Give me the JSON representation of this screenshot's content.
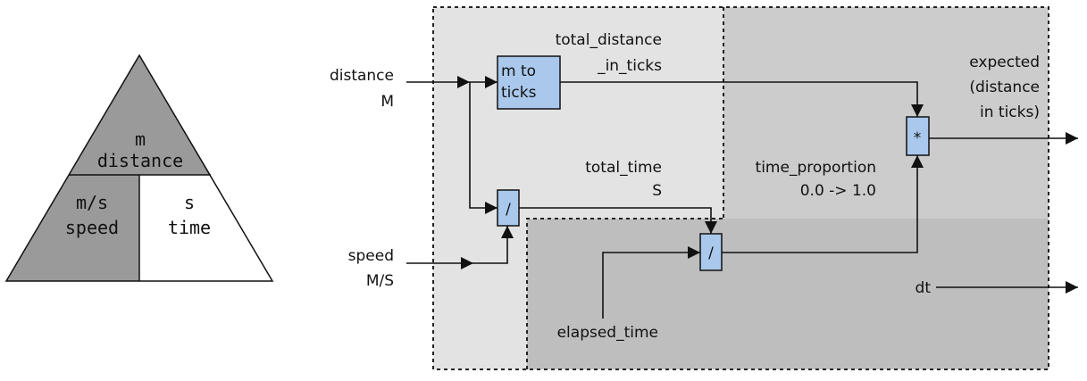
{
  "triangle": {
    "top": {
      "unit": "m",
      "name": "distance"
    },
    "bottom_left": {
      "unit": "m/s",
      "name": "speed"
    },
    "bottom_right": {
      "unit": "s",
      "name": "time"
    }
  },
  "inputs": {
    "distance": {
      "name": "distance",
      "unit": "M"
    },
    "speed": {
      "name": "speed",
      "unit": "M/S"
    },
    "elapsed_time": "elapsed_time",
    "dt": "dt"
  },
  "blocks": {
    "m_to_ticks": {
      "line1": "m to",
      "line2": "ticks"
    },
    "divide_1": "/",
    "divide_2": "/",
    "multiply": "*"
  },
  "signals": {
    "total_distance_in_ticks": {
      "line1": "total_distance",
      "line2": "_in_ticks"
    },
    "total_time": {
      "line1": "total_time",
      "line2": "S"
    },
    "time_proportion": {
      "line1": "time_proportion",
      "line2": "0.0 -> 1.0"
    }
  },
  "output": {
    "line1": "expected",
    "line2": "(distance",
    "line3": "in ticks)"
  },
  "colors": {
    "triangle_dark": "#9a9a9a",
    "panel_light": "#e3e3e3",
    "panel_medium": "#cccccc",
    "panel_dark": "#bebebe",
    "block_fill": "#a9c8ec",
    "line": "#111111"
  }
}
